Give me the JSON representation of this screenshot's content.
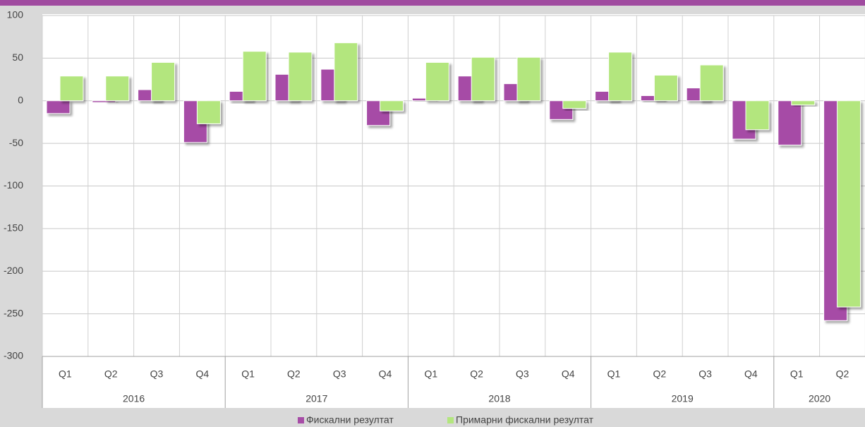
{
  "chart_data": {
    "type": "bar",
    "groups": [
      {
        "name": "2016",
        "categories": [
          "Q1",
          "Q2",
          "Q3",
          "Q4"
        ]
      },
      {
        "name": "2017",
        "categories": [
          "Q1",
          "Q2",
          "Q3",
          "Q4"
        ]
      },
      {
        "name": "2018",
        "categories": [
          "Q1",
          "Q2",
          "Q3",
          "Q4"
        ]
      },
      {
        "name": "2019",
        "categories": [
          "Q1",
          "Q2",
          "Q3",
          "Q4"
        ]
      },
      {
        "name": "2020",
        "categories": [
          "Q1",
          "Q2"
        ]
      }
    ],
    "series": [
      {
        "name": "Фискални резултат",
        "color": "#a64ca6",
        "values": [
          -15,
          -2,
          13,
          -49,
          11,
          31,
          37,
          -29,
          3,
          29,
          20,
          -22,
          11,
          6,
          15,
          -45,
          -52,
          -258
        ]
      },
      {
        "name": "Примарни фискални резултат",
        "color": "#b3e67e",
        "values": [
          29,
          29,
          45,
          -27,
          58,
          57,
          68,
          -12,
          45,
          51,
          51,
          -9,
          57,
          30,
          42,
          -34,
          -5,
          -242
        ]
      }
    ],
    "ylim": [
      -300,
      100
    ],
    "yticks": [
      -300,
      -250,
      -200,
      -150,
      -100,
      -50,
      0,
      50,
      100
    ],
    "grid": true
  }
}
